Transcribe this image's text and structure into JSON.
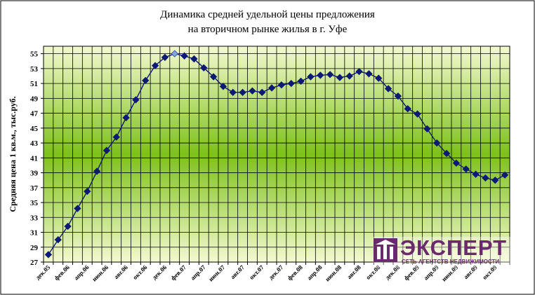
{
  "chart_data": {
    "type": "line",
    "title_line1": "Динамика средней удельной цены предложения",
    "title_line2": "на вторичном рынке жилья в г. Уфе",
    "ylabel": "Средняя цена 1 кв.м., тыс.руб.",
    "xlabel": "",
    "ylim": [
      27,
      56
    ],
    "yticks": [
      27,
      29,
      31,
      33,
      35,
      37,
      39,
      41,
      43,
      45,
      47,
      49,
      51,
      53,
      55
    ],
    "grid": true,
    "legend": "none",
    "x_tick_labels": [
      "дек.05",
      "фев.06",
      "апр.06",
      "июн.06",
      "авг.06",
      "окт.06",
      "дек.06",
      "фев.07",
      "апр.07",
      "июн.07",
      "авг.07",
      "окт.07",
      "дек.07",
      "фев.08",
      "апр.08",
      "июн.08",
      "авг.08",
      "окт.08",
      "дек.08",
      "фев.09",
      "апр.09",
      "июн.09",
      "авг.09",
      "окт.09"
    ],
    "series": [
      {
        "values": [
          28.0,
          30.0,
          31.8,
          34.2,
          36.5,
          39.2,
          42.0,
          43.8,
          46.4,
          48.8,
          51.4,
          53.4,
          54.5,
          55.0,
          54.7,
          54.3,
          53.1,
          51.9,
          50.6,
          49.8,
          49.8,
          50.0,
          49.8,
          50.4,
          50.8,
          51.0,
          51.3,
          51.9,
          52.1,
          52.2,
          51.8,
          52.0,
          52.6,
          52.3,
          51.7,
          50.3,
          49.3,
          47.6,
          46.9,
          44.9,
          43.0,
          41.6,
          40.3,
          39.5,
          38.8,
          38.3,
          38.0,
          38.7
        ],
        "highlighted_index": 13,
        "color": "#0d1a75",
        "highlight_color": "#7ea6e0"
      }
    ]
  },
  "logo": {
    "name": "ЭКСПЕРТ",
    "tagline": "СЕТЬ АГЕНТСТВ НЕДВИЖИМОСТИ",
    "color": "#6b2a6b"
  },
  "colors": {
    "plot_edge": "#f3f9cf",
    "plot_mid": "#7dc11a",
    "grid": "#000000",
    "frame": "#000000"
  }
}
